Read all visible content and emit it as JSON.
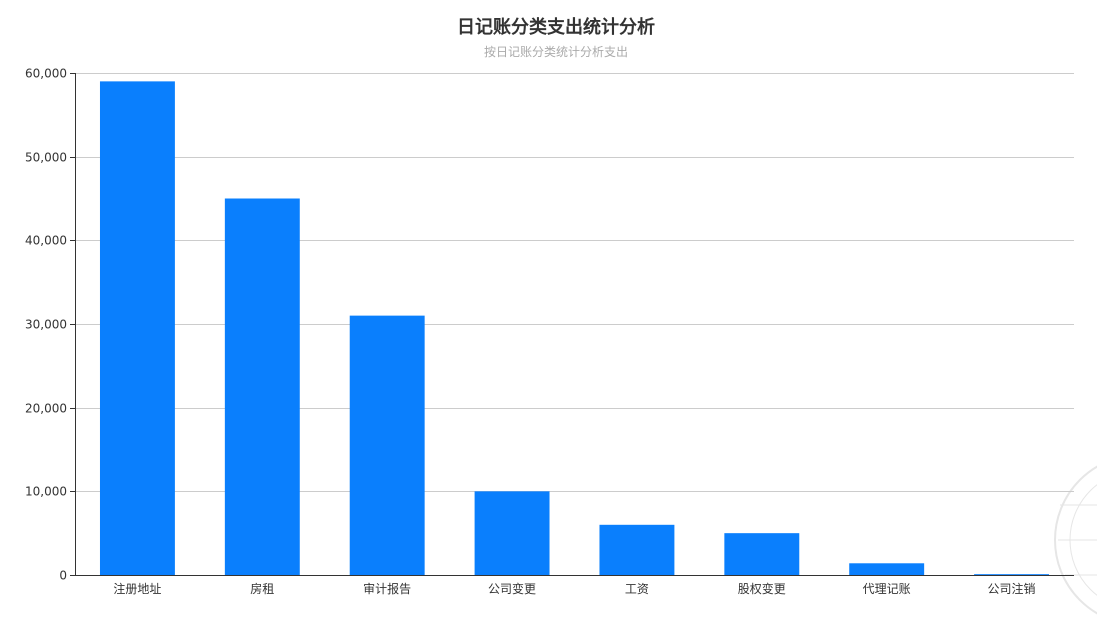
{
  "chart_data": {
    "type": "bar",
    "title": "日记账分类支出统计分析",
    "subtitle": "按日记账分类统计分析支出",
    "categories": [
      "注册地址",
      "房租",
      "审计报告",
      "公司变更",
      "工资",
      "股权变更",
      "代理记账",
      "公司注销"
    ],
    "values": [
      59000,
      45000,
      31000,
      10000,
      6000,
      5000,
      1400,
      100
    ],
    "ylim": [
      0,
      60000
    ],
    "yticks": [
      0,
      10000,
      20000,
      30000,
      40000,
      50000,
      60000
    ],
    "ytick_labels": [
      "0",
      "10,000",
      "20,000",
      "30,000",
      "40,000",
      "50,000",
      "60,000"
    ],
    "grid": true,
    "bar_color": "#0a7ffd"
  }
}
